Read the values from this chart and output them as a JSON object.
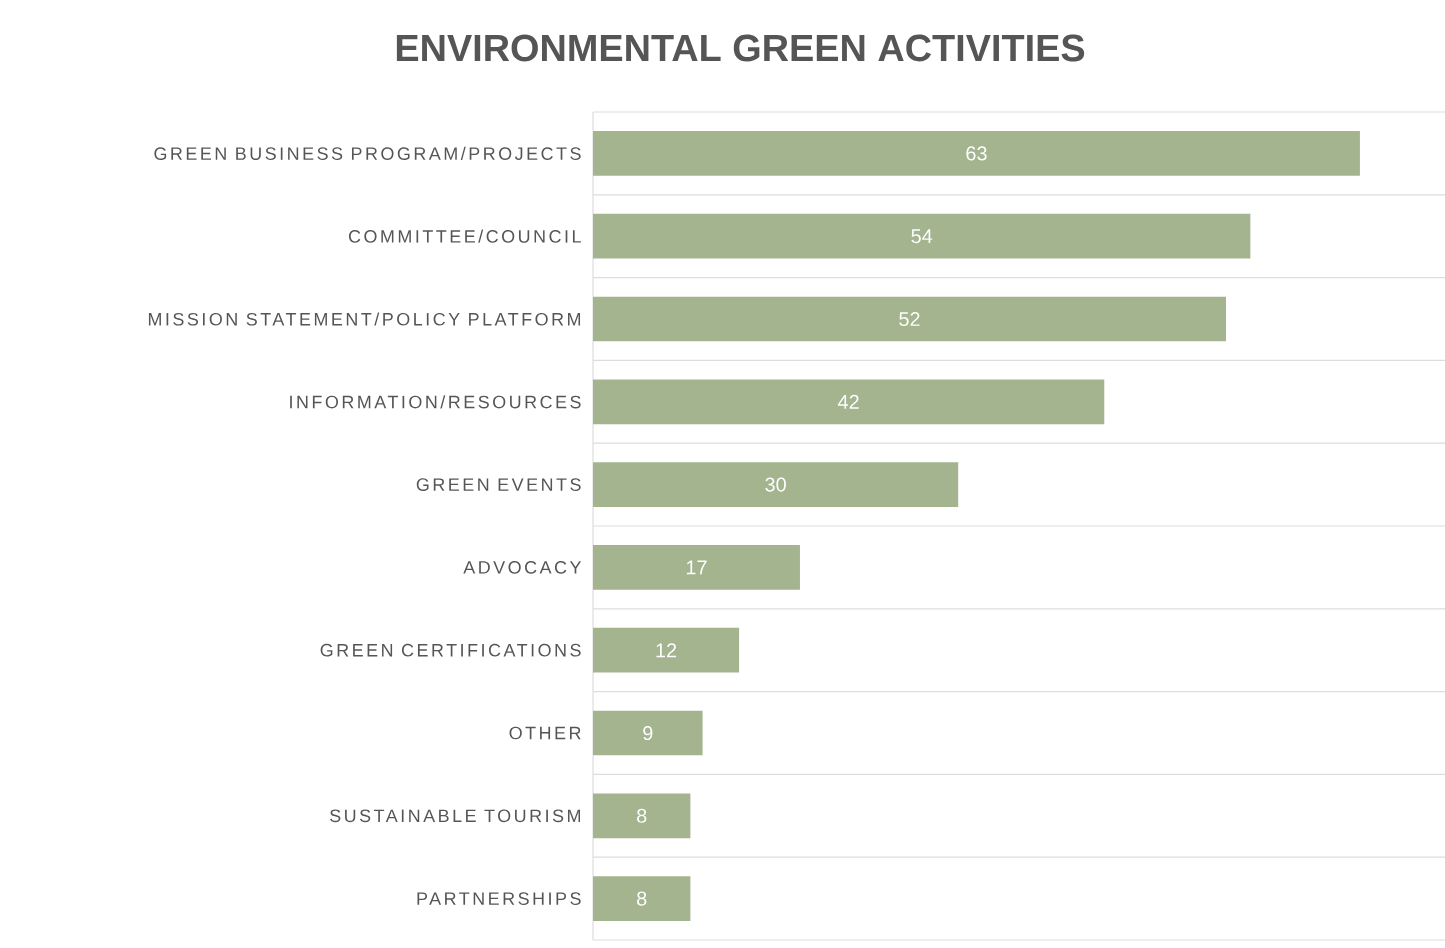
{
  "chart_data": {
    "type": "bar",
    "title": "ENVIRONMENTAL GREEN ACTIVITIES",
    "orientation": "horizontal",
    "categories": [
      "GREEN BUSINESS PROGRAM/PROJECTS",
      "COMMITTEE/COUNCIL",
      "MISSION STATEMENT/POLICY PLATFORM",
      "INFORMATION/RESOURCES",
      "GREEN EVENTS",
      "ADVOCACY",
      "GREEN CERTIFICATIONS",
      "OTHER",
      "SUSTAINABLE TOURISM",
      "PARTNERSHIPS"
    ],
    "values": [
      63,
      54,
      52,
      42,
      30,
      17,
      12,
      9,
      8,
      8
    ],
    "color": "#a3b48f",
    "data_labels": true,
    "grid": "y"
  }
}
